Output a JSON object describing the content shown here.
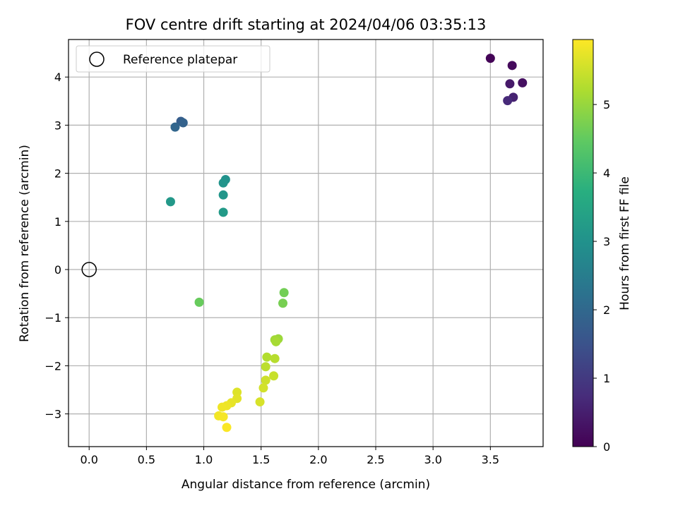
{
  "chart_data": {
    "type": "scatter",
    "title": "FOV centre drift starting at 2024/04/06 03:35:13",
    "xlabel": "Angular distance from reference (arcmin)",
    "ylabel": "Rotation from reference (arcmin)",
    "xlim": [
      -0.18,
      3.96
    ],
    "ylim": [
      -3.68,
      4.78
    ],
    "xticks": [
      0.0,
      0.5,
      1.0,
      1.5,
      2.0,
      2.5,
      3.0,
      3.5
    ],
    "xtick_labels": [
      "0.0",
      "0.5",
      "1.0",
      "1.5",
      "2.0",
      "2.5",
      "3.0",
      "3.5"
    ],
    "yticks": [
      -3,
      -2,
      -1,
      0,
      1,
      2,
      3,
      4
    ],
    "ytick_labels": [
      "−3",
      "−2",
      "−1",
      "0",
      "1",
      "2",
      "3",
      "4"
    ],
    "grid": true,
    "legend": {
      "position": "top-left",
      "entries": [
        "Reference platepar"
      ]
    },
    "reference_point": {
      "x": 0.0,
      "y": 0.0
    },
    "colorbar": {
      "label": "Hours from first FF file",
      "min": 0,
      "max": 5.95,
      "ticks": [
        0,
        1,
        2,
        3,
        4,
        5
      ],
      "tick_labels": [
        "0",
        "1",
        "2",
        "3",
        "4",
        "5"
      ],
      "colormap": "viridis"
    },
    "points": [
      {
        "x": 3.5,
        "y": 4.39,
        "c": 0.05
      },
      {
        "x": 3.69,
        "y": 4.24,
        "c": 0.15
      },
      {
        "x": 3.78,
        "y": 3.88,
        "c": 0.25
      },
      {
        "x": 3.67,
        "y": 3.86,
        "c": 0.4
      },
      {
        "x": 3.7,
        "y": 3.58,
        "c": 0.55
      },
      {
        "x": 3.65,
        "y": 3.51,
        "c": 0.7
      },
      {
        "x": 0.8,
        "y": 3.08,
        "c": 1.75
      },
      {
        "x": 0.82,
        "y": 3.05,
        "c": 1.85
      },
      {
        "x": 0.75,
        "y": 2.96,
        "c": 1.95
      },
      {
        "x": 1.19,
        "y": 1.87,
        "c": 3.0
      },
      {
        "x": 1.17,
        "y": 1.8,
        "c": 3.05
      },
      {
        "x": 1.17,
        "y": 1.55,
        "c": 3.1
      },
      {
        "x": 0.71,
        "y": 1.41,
        "c": 3.15
      },
      {
        "x": 1.17,
        "y": 1.19,
        "c": 3.2
      },
      {
        "x": 0.96,
        "y": -0.68,
        "c": 4.55
      },
      {
        "x": 1.7,
        "y": -0.48,
        "c": 4.65
      },
      {
        "x": 1.69,
        "y": -0.7,
        "c": 4.7
      },
      {
        "x": 1.65,
        "y": -1.44,
        "c": 5.05
      },
      {
        "x": 1.62,
        "y": -1.46,
        "c": 5.1
      },
      {
        "x": 1.63,
        "y": -1.5,
        "c": 5.15
      },
      {
        "x": 1.55,
        "y": -1.82,
        "c": 5.25
      },
      {
        "x": 1.62,
        "y": -1.85,
        "c": 5.3
      },
      {
        "x": 1.54,
        "y": -2.02,
        "c": 5.35
      },
      {
        "x": 1.61,
        "y": -2.21,
        "c": 5.45
      },
      {
        "x": 1.54,
        "y": -2.3,
        "c": 5.5
      },
      {
        "x": 1.52,
        "y": -2.46,
        "c": 5.55
      },
      {
        "x": 1.49,
        "y": -2.75,
        "c": 5.6
      },
      {
        "x": 1.29,
        "y": -2.55,
        "c": 5.65
      },
      {
        "x": 1.29,
        "y": -2.68,
        "c": 5.7
      },
      {
        "x": 1.24,
        "y": -2.77,
        "c": 5.75
      },
      {
        "x": 1.2,
        "y": -2.83,
        "c": 5.8
      },
      {
        "x": 1.16,
        "y": -2.86,
        "c": 5.82
      },
      {
        "x": 1.13,
        "y": -3.04,
        "c": 5.85
      },
      {
        "x": 1.17,
        "y": -3.06,
        "c": 5.88
      },
      {
        "x": 1.2,
        "y": -3.28,
        "c": 5.92
      }
    ]
  }
}
